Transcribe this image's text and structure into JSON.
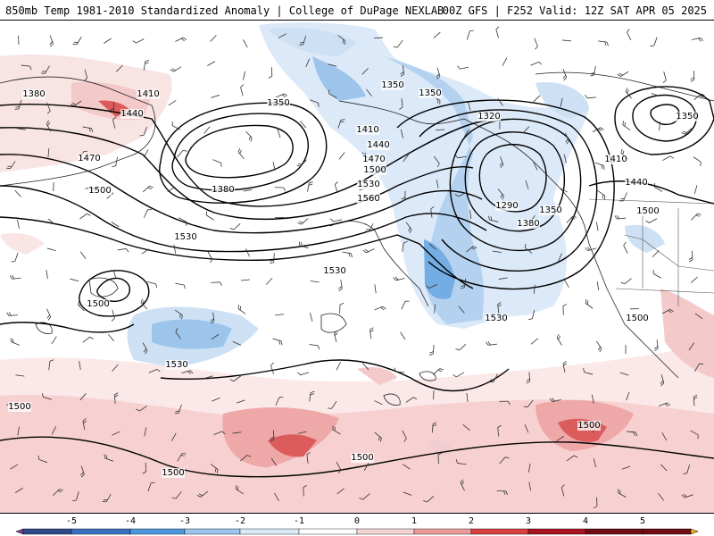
{
  "header": {
    "title_left": "850mb Temp 1981-2010 Standardized Anomaly | College of DuPage NEXLAB",
    "title_right": "00Z GFS | F252 Valid: 12Z SAT APR 05 2025"
  },
  "contour_labels": [
    {
      "id": "c1380a",
      "text": "1380"
    },
    {
      "id": "c1410a",
      "text": "1410"
    },
    {
      "id": "c1440a",
      "text": "1440"
    },
    {
      "id": "c1470a",
      "text": "1470"
    },
    {
      "id": "c1500a",
      "text": "1500"
    },
    {
      "id": "c1350a",
      "text": "1350"
    },
    {
      "id": "c1380b",
      "text": "1380"
    },
    {
      "id": "c1350b",
      "text": "1350"
    },
    {
      "id": "c1350c",
      "text": "1350"
    },
    {
      "id": "c1410b",
      "text": "1410"
    },
    {
      "id": "c1440b",
      "text": "1440"
    },
    {
      "id": "c1470b",
      "text": "1470"
    },
    {
      "id": "c1500b",
      "text": "1500"
    },
    {
      "id": "c1530a",
      "text": "1530"
    },
    {
      "id": "c1560a",
      "text": "1560"
    },
    {
      "id": "c1320a",
      "text": "1320"
    },
    {
      "id": "c1290a",
      "text": "1290"
    },
    {
      "id": "c1350d",
      "text": "1350"
    },
    {
      "id": "c1380c",
      "text": "1380"
    },
    {
      "id": "c1350e",
      "text": "1350"
    },
    {
      "id": "c1410c",
      "text": "1410"
    },
    {
      "id": "c1440c",
      "text": "1440"
    },
    {
      "id": "c1500c",
      "text": "1500"
    },
    {
      "id": "c1530b",
      "text": "1530"
    },
    {
      "id": "c1530c",
      "text": "1530"
    },
    {
      "id": "c1500d",
      "text": "1500"
    },
    {
      "id": "c1530d",
      "text": "1530"
    },
    {
      "id": "c1530e",
      "text": "1530"
    },
    {
      "id": "c1500e",
      "text": "1500"
    },
    {
      "id": "c1500f",
      "text": "1500"
    },
    {
      "id": "c1500g",
      "text": "1500"
    },
    {
      "id": "c1500h",
      "text": "1500"
    },
    {
      "id": "c1500i",
      "text": "1500"
    }
  ],
  "legend": {
    "ticks": [
      "-5",
      "-4",
      "-3",
      "-2",
      "-1",
      "0",
      "1",
      "2",
      "3",
      "4",
      "5"
    ],
    "colors": [
      "#7b3fa0",
      "#2e4a8a",
      "#3a6fc0",
      "#4c97dd",
      "#9cc4ec",
      "#dbe8f7",
      "#ffffff",
      "#f5d4d4",
      "#ec9a9a",
      "#d64040",
      "#a8131f",
      "#6e0b14",
      "#f2b21c"
    ]
  },
  "colors": {
    "negative_shading": "#4c97dd",
    "positive_shading": "#d64040",
    "contour": "#000000"
  }
}
